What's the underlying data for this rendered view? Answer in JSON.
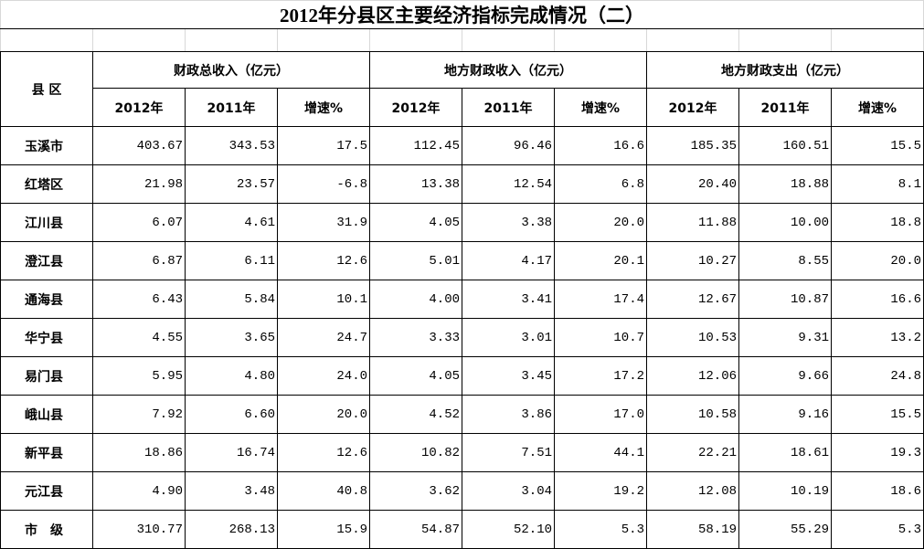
{
  "title": "2012年分县区主要经济指标完成情况（二）",
  "header": {
    "region": "县 区",
    "groups": [
      {
        "name": "财政总收入（亿元）",
        "columns": [
          "2012年",
          "2011年",
          "增速%"
        ]
      },
      {
        "name": "地方财政收入（亿元）",
        "columns": [
          "2012年",
          "2011年",
          "增速%"
        ]
      },
      {
        "name": "地方财政支出（亿元）",
        "columns": [
          "2012年",
          "2011年",
          "增速%"
        ]
      }
    ]
  },
  "rows": [
    {
      "name": "玉溪市",
      "values": [
        "403.67",
        "343.53",
        "17.5",
        "112.45",
        "96.46",
        "16.6",
        "185.35",
        "160.51",
        "15.5"
      ]
    },
    {
      "name": "红塔区",
      "values": [
        "21.98",
        "23.57",
        "-6.8",
        "13.38",
        "12.54",
        "6.8",
        "20.40",
        "18.88",
        "8.1"
      ]
    },
    {
      "name": "江川县",
      "values": [
        "6.07",
        "4.61",
        "31.9",
        "4.05",
        "3.38",
        "20.0",
        "11.88",
        "10.00",
        "18.8"
      ]
    },
    {
      "name": "澄江县",
      "values": [
        "6.87",
        "6.11",
        "12.6",
        "5.01",
        "4.17",
        "20.1",
        "10.27",
        "8.55",
        "20.0"
      ]
    },
    {
      "name": "通海县",
      "values": [
        "6.43",
        "5.84",
        "10.1",
        "4.00",
        "3.41",
        "17.4",
        "12.67",
        "10.87",
        "16.6"
      ]
    },
    {
      "name": "华宁县",
      "values": [
        "4.55",
        "3.65",
        "24.7",
        "3.33",
        "3.01",
        "10.7",
        "10.53",
        "9.31",
        "13.2"
      ]
    },
    {
      "name": "易门县",
      "values": [
        "5.95",
        "4.80",
        "24.0",
        "4.05",
        "3.45",
        "17.2",
        "12.06",
        "9.66",
        "24.8"
      ]
    },
    {
      "name": "峨山县",
      "values": [
        "7.92",
        "6.60",
        "20.0",
        "4.52",
        "3.86",
        "17.0",
        "10.58",
        "9.16",
        "15.5"
      ]
    },
    {
      "name": "新平县",
      "values": [
        "18.86",
        "16.74",
        "12.6",
        "10.82",
        "7.51",
        "44.1",
        "22.21",
        "18.61",
        "19.3"
      ]
    },
    {
      "name": "元江县",
      "values": [
        "4.90",
        "3.48",
        "40.8",
        "3.62",
        "3.04",
        "19.2",
        "12.08",
        "10.19",
        "18.6"
      ]
    },
    {
      "name": "市　级",
      "values": [
        "310.77",
        "268.13",
        "15.9",
        "54.87",
        "52.10",
        "5.3",
        "58.19",
        "55.29",
        "5.3"
      ]
    }
  ]
}
